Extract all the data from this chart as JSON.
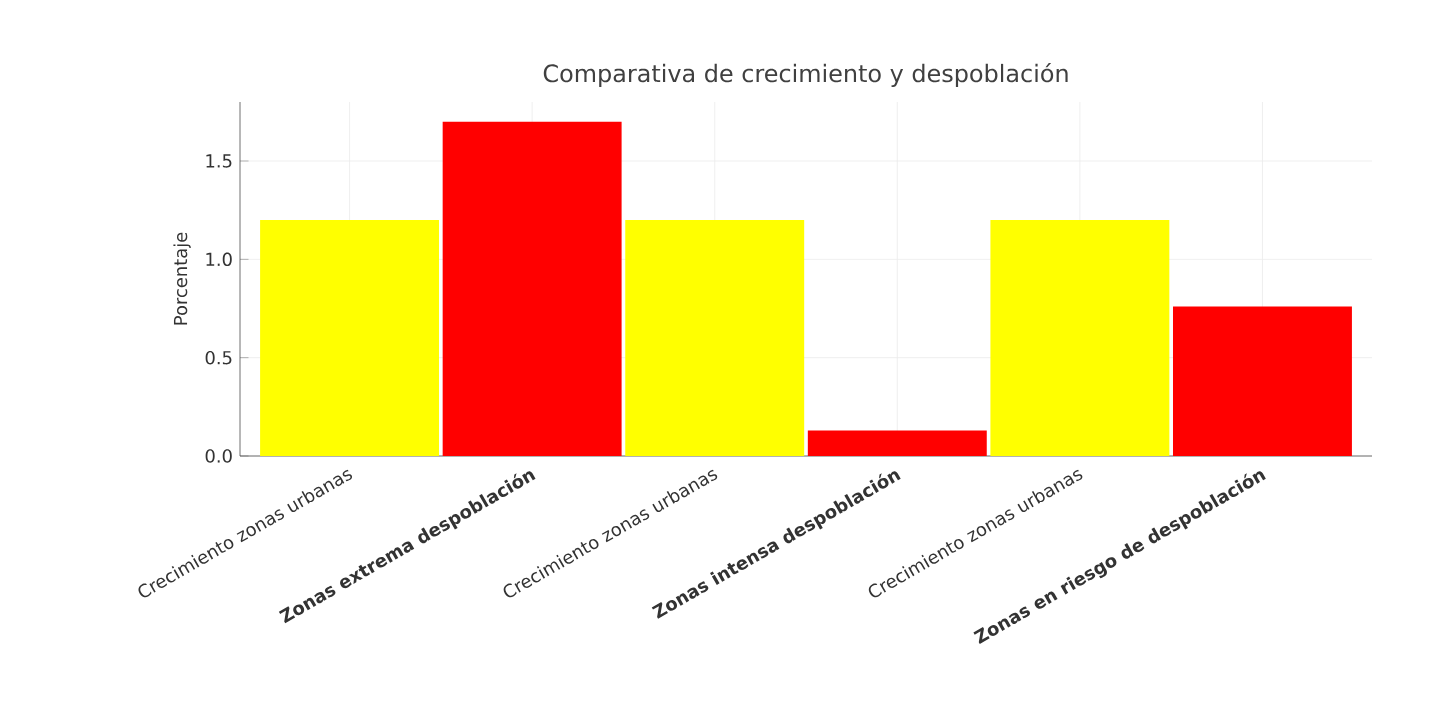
{
  "chart_data": {
    "type": "bar",
    "title": "Comparativa de crecimiento y despoblación",
    "ylabel": "Porcentaje",
    "categories": [
      "Crecimiento zonas urbanas",
      "Zonas extrema despoblación",
      "Crecimiento zonas urbanas",
      "Zonas intensa despoblación",
      "Crecimiento zonas urbanas",
      "Zonas en riesgo de despoblación"
    ],
    "values": [
      1.2,
      1.7,
      1.2,
      0.13,
      1.2,
      0.76
    ],
    "colors": [
      "#ffff00",
      "#ff0000",
      "#ffff00",
      "#ff0000",
      "#ffff00",
      "#ff0000"
    ],
    "ylim": [
      0,
      1.8
    ],
    "yticks": [
      {
        "value": 0,
        "label": "0.0"
      },
      {
        "value": 0.5,
        "label": "0.5"
      },
      {
        "value": 1,
        "label": "1.0"
      },
      {
        "value": 1.5,
        "label": "1.5"
      }
    ],
    "grid": true
  }
}
